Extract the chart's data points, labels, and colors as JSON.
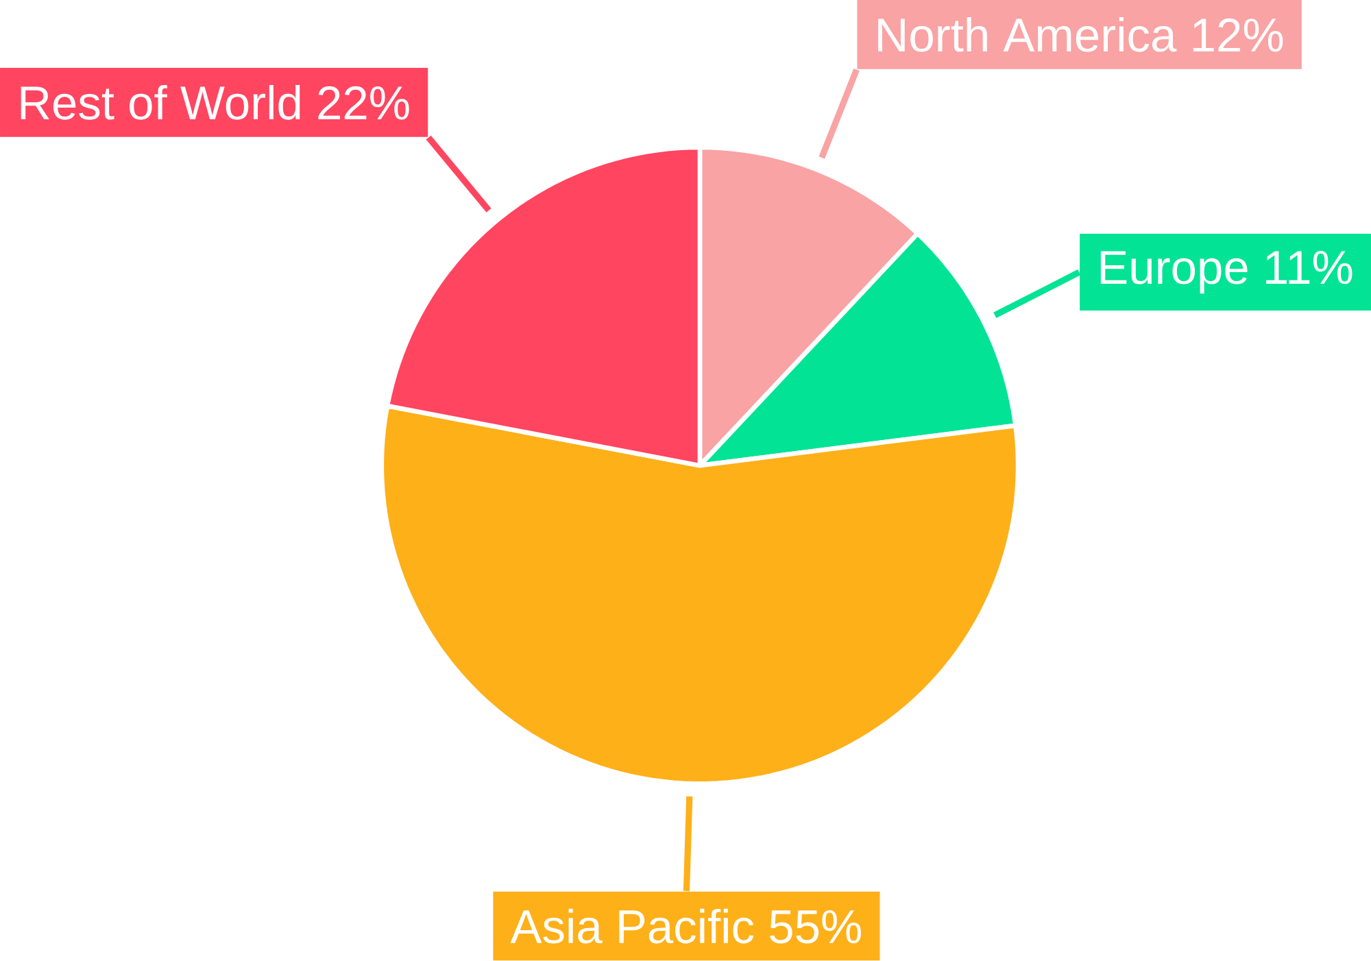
{
  "chart_data": {
    "type": "pie",
    "categories": [
      "North America",
      "Europe",
      "Asia Pacific",
      "Rest of World"
    ],
    "values": [
      12,
      11,
      55,
      22
    ],
    "value_labels": [
      "12%",
      "11%",
      "55%",
      "22%"
    ],
    "colors": [
      "#f9a3a4",
      "#03e396",
      "#feb019",
      "#ff4560"
    ]
  }
}
